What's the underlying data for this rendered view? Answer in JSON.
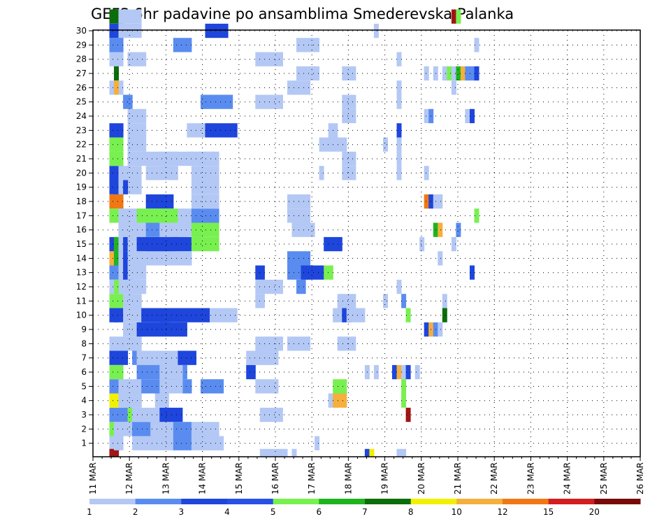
{
  "chart_data": {
    "type": "heatmap",
    "title": "GEFS 6hr padavine po ansamblima Smederevska Palanka",
    "xlabel": "",
    "ylabel": "",
    "x_ticks": [
      "11 MAR",
      "12 MAR",
      "13 MAR",
      "14 MAR",
      "15 MAR",
      "16 MAR",
      "17 MAR",
      "18 MAR",
      "19 MAR",
      "20 MAR",
      "21 MAR",
      "22 MAR",
      "23 MAR",
      "24 MAR",
      "25 MAR",
      "26 MAR"
    ],
    "y_ticks": [
      "1",
      "2",
      "3",
      "4",
      "5",
      "6",
      "7",
      "8",
      "9",
      "10",
      "11",
      "12",
      "13",
      "14",
      "15",
      "16",
      "17",
      "18",
      "19",
      "20",
      "21",
      "22",
      "23",
      "24",
      "25",
      "26",
      "27",
      "28",
      "29",
      "30"
    ],
    "x_range": [
      "11 MAR 00Z",
      "26 MAR 00Z"
    ],
    "y_range": [
      0,
      30
    ],
    "time_step_hours": 6,
    "grid": true,
    "colorbar": {
      "labels": [
        "1",
        "2",
        "3",
        "4",
        "5",
        "6",
        "7",
        "8",
        "10",
        "12",
        "15",
        "20"
      ],
      "colors": [
        "#b4c8f5",
        "#5a8cf0",
        "#1e46dc",
        "#2850e6",
        "#78f050",
        "#1eb41e",
        "#0a6e0a",
        "#f0f000",
        "#f5af3c",
        "#f07814",
        "#d21e1e",
        "#780a0a"
      ]
    },
    "cells": [
      [
        0,
        1,
        3,
        "#b4c8f5"
      ],
      [
        1,
        1,
        3,
        "#78f050"
      ],
      [
        2,
        1,
        3,
        "#5a8cf0"
      ],
      [
        3,
        1,
        3,
        "#f0f000"
      ],
      [
        4,
        1,
        3,
        "#5a8cf0"
      ],
      [
        5,
        1,
        3,
        "#78f050"
      ],
      [
        6,
        1,
        3,
        "#1e46dc"
      ],
      [
        7,
        1,
        3,
        "#b4c8f5"
      ],
      [
        9,
        1,
        3,
        "#1e46dc"
      ],
      [
        10,
        1,
        3,
        "#78f050"
      ],
      [
        11,
        1,
        3,
        "#b4c8f5"
      ],
      [
        12,
        1,
        3,
        "#5a8cf0"
      ],
      [
        13,
        1,
        3,
        "#f5af3c"
      ],
      [
        14,
        1,
        3,
        "#1e46dc"
      ],
      [
        16,
        1,
        3,
        "#78f050"
      ],
      [
        17,
        1,
        3,
        "#f07814"
      ],
      [
        18,
        1,
        3,
        "#1e46dc"
      ],
      [
        19,
        1,
        3,
        "#1e46dc"
      ],
      [
        20,
        1,
        3,
        "#78f050"
      ],
      [
        21,
        1,
        3,
        "#78f050"
      ],
      [
        22,
        1,
        3,
        "#1e46dc"
      ],
      [
        25,
        1,
        3,
        "#b4c8f5"
      ],
      [
        27,
        1,
        3,
        "#b4c8f5"
      ],
      [
        28,
        1,
        3,
        "#5a8cf0"
      ],
      [
        29,
        1,
        3,
        "#1e46dc"
      ],
      [
        30,
        1,
        3,
        "#0a6e0a"
      ],
      [
        -1,
        1,
        2,
        "#a01414"
      ],
      [
        0,
        2,
        1,
        "#b4c8f5"
      ],
      [
        9,
        2,
        1,
        "#1e46dc"
      ],
      [
        13,
        2,
        2,
        "#1eb41e"
      ],
      [
        18,
        2,
        1,
        "#1e46dc"
      ],
      [
        26,
        2,
        1,
        "#0a6e0a"
      ],
      [
        25,
        2,
        1,
        "#f5af3c"
      ],
      [
        11,
        2,
        1,
        "#78f050"
      ],
      [
        21,
        2,
        1,
        "#78f050"
      ],
      [
        20,
        2,
        1,
        "#78f050"
      ],
      [
        14,
        2,
        1,
        "#1eb41e"
      ],
      [
        1,
        2,
        3,
        "#b4c8f5"
      ],
      [
        3,
        3,
        5,
        "#b4c8f5"
      ],
      [
        4,
        3,
        5,
        "#b4c8f5"
      ],
      [
        12,
        3,
        5,
        "#b4c8f5"
      ],
      [
        13,
        3,
        5,
        "#b4c8f5"
      ],
      [
        14,
        3,
        5,
        "#b4c8f5"
      ],
      [
        15,
        3,
        5,
        "#b4c8f5"
      ],
      [
        16,
        3,
        5,
        "#b4c8f5"
      ],
      [
        18,
        3,
        5,
        "#b4c8f5"
      ],
      [
        19,
        3,
        5,
        "#b4c8f5"
      ],
      [
        29,
        3,
        5,
        "#b4c8f5"
      ],
      [
        30,
        3,
        5,
        "#b4c8f5"
      ],
      [
        2,
        4,
        2,
        "#5a8cf0"
      ],
      [
        2,
        5,
        2,
        "#78f050"
      ],
      [
        6,
        4,
        1,
        "#1e46dc"
      ],
      [
        11,
        4,
        2,
        "#b4c8f5"
      ],
      [
        12,
        4,
        2,
        "#1e46dc"
      ],
      [
        13,
        4,
        1,
        "#1e46dc"
      ],
      [
        14,
        4,
        2,
        "#1e46dc"
      ],
      [
        18,
        4,
        1,
        "#1e46dc"
      ],
      [
        24,
        4,
        2,
        "#5a8cf0"
      ],
      [
        3,
        4,
        4,
        "#b4c8f5"
      ],
      [
        4,
        4,
        4,
        "#b4c8f5"
      ],
      [
        7,
        4,
        4,
        "#b4c8f5"
      ],
      [
        8,
        4,
        5,
        "#b4c8f5"
      ],
      [
        9,
        4,
        4,
        "#b4c8f5"
      ],
      [
        10,
        4,
        4,
        "#b4c8f5"
      ],
      [
        11,
        5,
        4,
        "#b4c8f5"
      ],
      [
        12,
        5,
        4,
        "#b4c8f5"
      ],
      [
        13,
        5,
        4,
        "#b4c8f5"
      ],
      [
        14,
        5,
        4,
        "#b4c8f5"
      ],
      [
        15,
        5,
        4,
        "#b4c8f5"
      ],
      [
        20,
        5,
        4,
        "#b4c8f5"
      ],
      [
        21,
        5,
        4,
        "#b4c8f5"
      ],
      [
        22,
        5,
        4,
        "#b4c8f5"
      ],
      [
        23,
        5,
        4,
        "#b4c8f5"
      ],
      [
        27,
        5,
        4,
        "#b4c8f5"
      ],
      [
        0,
        6,
        5,
        "#b4c8f5"
      ],
      [
        1,
        5,
        6,
        "#b4c8f5"
      ],
      [
        1,
        6,
        6,
        "#5a8cf0"
      ],
      [
        2,
        6,
        6,
        "#b4c8f5"
      ],
      [
        6,
        6,
        11,
        "#5a8cf0"
      ],
      [
        6,
        7,
        11,
        "#b4c8f5"
      ],
      [
        6,
        8,
        11,
        "#b4c8f5"
      ],
      [
        6,
        9,
        11,
        "#b4c8f5"
      ],
      [
        4,
        8,
        11,
        "#5a8cf0"
      ],
      [
        5,
        7,
        11,
        "#5a8cf0"
      ],
      [
        8,
        7,
        11,
        "#1e46dc"
      ],
      [
        14,
        7,
        11,
        "#1e46dc"
      ],
      [
        13,
        7,
        12,
        "#b4c8f5"
      ],
      [
        16,
        7,
        6,
        "#78f050"
      ],
      [
        9,
        8,
        15,
        "#1e46dc"
      ],
      [
        17,
        9,
        6,
        "#1e46dc"
      ],
      [
        19,
        9,
        6,
        "#b4c8f5"
      ],
      [
        20,
        9,
        6,
        "#b4c8f5"
      ],
      [
        14,
        9,
        7,
        "#1e46dc"
      ],
      [
        15,
        9,
        7,
        "#5a8cf0"
      ],
      [
        16,
        9,
        7,
        "#78f050"
      ],
      [
        0,
        10,
        5,
        "#b4c8f5"
      ],
      [
        1,
        10,
        5,
        "#b4c8f5"
      ],
      [
        3,
        11,
        3,
        "#b4c8f5"
      ],
      [
        2,
        12,
        5,
        "#1e46dc"
      ],
      [
        4,
        12,
        5,
        "#b4c8f5"
      ],
      [
        5,
        12,
        5,
        "#b4c8f5"
      ],
      [
        6,
        12,
        5,
        "#b4c8f5"
      ],
      [
        9,
        12,
        2,
        "#1e46dc"
      ],
      [
        15,
        12,
        4,
        "#b4c8f5"
      ],
      [
        19,
        12,
        4,
        "#b4c8f5"
      ],
      [
        20,
        12,
        4,
        "#b4c8f5"
      ],
      [
        0,
        15,
        4,
        "#5a8cf0"
      ],
      [
        1,
        15,
        4,
        "#5a8cf0"
      ],
      [
        6,
        16,
        4,
        "#1e46dc"
      ],
      [
        14,
        15,
        4,
        "#1e46dc"
      ],
      [
        13,
        15,
        4,
        "#b4c8f5"
      ],
      [
        15,
        16,
        5,
        "#b4c8f5"
      ],
      [
        16,
        16,
        5,
        "#b4c8f5"
      ],
      [
        20,
        15,
        4,
        "#b4c8f5"
      ],
      [
        28,
        15,
        4,
        "#5a8cf0"
      ],
      [
        20,
        19,
        6,
        "#b4c8f5"
      ],
      [
        20,
        18,
        6,
        "#b4c8f5"
      ],
      [
        22,
        18,
        6,
        "#b4c8f5"
      ],
      [
        14,
        19,
        6,
        "#78f050"
      ],
      [
        15,
        19,
        6,
        "#78f050"
      ],
      [
        16,
        19,
        6,
        "#5a8cf0"
      ],
      [
        17,
        19,
        6,
        "#b4c8f5"
      ],
      [
        18,
        19,
        6,
        "#b4c8f5"
      ],
      [
        19,
        19,
        6,
        "#b4c8f5"
      ],
      [
        1,
        19,
        6,
        "#b4c8f5"
      ],
      [
        0,
        19,
        7,
        "#b4c8f5"
      ],
      [
        0,
        21,
        5,
        "#b4c8f5"
      ],
      [
        4,
        21,
        5,
        "#5a8cf0"
      ],
      [
        9,
        23,
        6,
        "#b4c8f5"
      ],
      [
        22,
        22,
        7,
        "#1e46dc"
      ],
      [
        24,
        21,
        7,
        "#5a8cf0"
      ],
      [
        29,
        22,
        5,
        "#1e46dc"
      ],
      [
        6,
        31,
        6,
        "#b4c8f5"
      ],
      [
        5,
        31,
        2,
        "#1e46dc"
      ],
      [
        10,
        33,
        2,
        "#b4c8f5"
      ],
      [
        11,
        33,
        6,
        "#b4c8f5"
      ],
      [
        12,
        33,
        2,
        "#1e46dc"
      ],
      [
        7,
        33,
        6,
        "#b4c8f5"
      ],
      [
        6,
        33,
        5,
        "#b4c8f5"
      ],
      [
        4,
        33,
        5,
        "#b4c8f5"
      ],
      [
        2,
        34,
        5,
        "#b4c8f5"
      ],
      [
        24,
        33,
        6,
        "#b4c8f5"
      ],
      [
        27,
        33,
        6,
        "#b4c8f5"
      ],
      [
        -1,
        34,
        6,
        "#b4c8f5"
      ],
      [
        12,
        40,
        5,
        "#5a8cf0"
      ],
      [
        13,
        40,
        5,
        "#5a8cf0"
      ],
      [
        7,
        40,
        5,
        "#b4c8f5"
      ],
      [
        17,
        40,
        5,
        "#b4c8f5"
      ],
      [
        16,
        40,
        5,
        "#b4c8f5"
      ],
      [
        15,
        41,
        5,
        "#b4c8f5"
      ],
      [
        25,
        40,
        5,
        "#b4c8f5"
      ],
      [
        -1,
        41,
        1,
        "#b4c8f5"
      ],
      [
        11,
        42,
        2,
        "#5a8cf0"
      ],
      [
        12,
        43,
        5,
        "#1e46dc"
      ],
      [
        28,
        42,
        5,
        "#b4c8f5"
      ],
      [
        26,
        42,
        5,
        "#b4c8f5"
      ],
      [
        19,
        47,
        1,
        "#b4c8f5"
      ],
      [
        21,
        47,
        6,
        "#b4c8f5"
      ],
      [
        0,
        46,
        1,
        "#b4c8f5"
      ],
      [
        14,
        48,
        4,
        "#1e46dc"
      ],
      [
        12,
        48,
        2,
        "#78f050"
      ],
      [
        3,
        49,
        2,
        "#b4c8f5"
      ],
      [
        22,
        49,
        2,
        "#b4c8f5"
      ],
      [
        3,
        50,
        3,
        "#f5af3c"
      ],
      [
        4,
        50,
        3,
        "#78f050"
      ],
      [
        9,
        50,
        4,
        "#b4c8f5"
      ],
      [
        9,
        52,
        2,
        "#1e46dc"
      ],
      [
        9,
        53,
        4,
        "#b4c8f5"
      ],
      [
        10,
        51,
        4,
        "#b4c8f5"
      ],
      [
        7,
        51,
        4,
        "#b4c8f5"
      ],
      [
        19,
        52,
        3,
        "#b4c8f5"
      ],
      [
        20,
        52,
        3,
        "#b4c8f5"
      ],
      [
        23,
        52,
        3,
        "#b4c8f5"
      ],
      [
        26,
        52,
        3,
        "#b4c8f5"
      ],
      [
        24,
        52,
        3,
        "#b4c8f5"
      ],
      [
        -1,
        57,
        1,
        "#1e46dc"
      ],
      [
        -1,
        58,
        1,
        "#f0f000"
      ],
      [
        5,
        57,
        1,
        "#b4c8f5"
      ],
      [
        10,
        61,
        1,
        "#b4c8f5"
      ],
      [
        21,
        61,
        1,
        "#b4c8f5"
      ],
      [
        29,
        59,
        1,
        "#b4c8f5"
      ],
      [
        5,
        59,
        1,
        "#b4c8f5"
      ],
      [
        5,
        63,
        1,
        "#1e46dc"
      ],
      [
        5,
        64,
        1,
        "#f5af3c"
      ],
      [
        5,
        65,
        1,
        "#b4c8f5"
      ],
      [
        4,
        65,
        1,
        "#78f050"
      ],
      [
        3,
        65,
        1,
        "#78f050"
      ],
      [
        2,
        66,
        1,
        "#a01414"
      ],
      [
        10,
        65,
        1,
        "#5a8cf0"
      ],
      [
        9,
        66,
        1,
        "#78f050"
      ],
      [
        5,
        66,
        1,
        "#1e46dc"
      ],
      [
        5,
        68,
        1,
        "#b4c8f5"
      ],
      [
        11,
        64,
        1,
        "#b4c8f5"
      ],
      [
        19,
        64,
        1,
        "#b4c8f5"
      ],
      [
        20,
        64,
        1,
        "#b4c8f5"
      ],
      [
        21,
        64,
        1,
        "#b4c8f5"
      ],
      [
        22,
        64,
        1,
        "#1e46dc"
      ],
      [
        24,
        64,
        1,
        "#b4c8f5"
      ],
      [
        27,
        64,
        1,
        "#b4c8f5"
      ],
      [
        25,
        64,
        1,
        "#b4c8f5"
      ],
      [
        -1,
        64,
        1,
        "#b4c8f5"
      ],
      [
        -1,
        65,
        1,
        "#b4c8f5"
      ],
      [
        8,
        70,
        1,
        "#1e46dc"
      ],
      [
        8,
        71,
        1,
        "#f5af3c"
      ],
      [
        8,
        72,
        1,
        "#5a8cf0"
      ],
      [
        8,
        73,
        1,
        "#b4c8f5"
      ],
      [
        9,
        74,
        1,
        "#0a6e0a"
      ],
      [
        10,
        74,
        1,
        "#b4c8f5"
      ],
      [
        15,
        72,
        1,
        "#1eb41e"
      ],
      [
        15,
        73,
        1,
        "#f5af3c"
      ],
      [
        13,
        73,
        1,
        "#b4c8f5"
      ],
      [
        17,
        70,
        1,
        "#f07814"
      ],
      [
        17,
        71,
        1,
        "#1e46dc"
      ],
      [
        17,
        72,
        1,
        "#b4c8f5"
      ],
      [
        17,
        73,
        1,
        "#b4c8f5"
      ],
      [
        19,
        70,
        1,
        "#b4c8f5"
      ],
      [
        23,
        70,
        1,
        "#b4c8f5"
      ],
      [
        23,
        71,
        1,
        "#5a8cf0"
      ],
      [
        25,
        76,
        1,
        "#b4c8f5"
      ],
      [
        26,
        74,
        1,
        "#b4c8f5"
      ],
      [
        26,
        75,
        1,
        "#78f050"
      ],
      [
        26,
        76,
        1,
        "#b4c8f5"
      ],
      [
        26,
        77,
        1,
        "#1eb41e"
      ],
      [
        26,
        78,
        1,
        "#f5af3c"
      ],
      [
        26,
        79,
        1,
        "#5a8cf0"
      ],
      [
        26,
        80,
        1,
        "#5a8cf0"
      ],
      [
        26,
        81,
        1,
        "#1e46dc"
      ],
      [
        26,
        70,
        1,
        "#b4c8f5"
      ],
      [
        26,
        72,
        1,
        "#b4c8f5"
      ],
      [
        23,
        79,
        1,
        "#b4c8f5"
      ],
      [
        23,
        80,
        1,
        "#1e46dc"
      ],
      [
        30,
        76,
        1,
        "#a01414"
      ],
      [
        30,
        77,
        1,
        "#78f050"
      ],
      [
        28,
        81,
        1,
        "#b4c8f5"
      ],
      [
        16,
        81,
        1,
        "#78f050"
      ],
      [
        12,
        80,
        1,
        "#1e46dc"
      ],
      [
        14,
        76,
        1,
        "#b4c8f5"
      ],
      [
        15,
        77,
        1,
        "#5a8cf0"
      ],
      [
        14,
        69,
        1,
        "#b4c8f5"
      ]
    ]
  }
}
